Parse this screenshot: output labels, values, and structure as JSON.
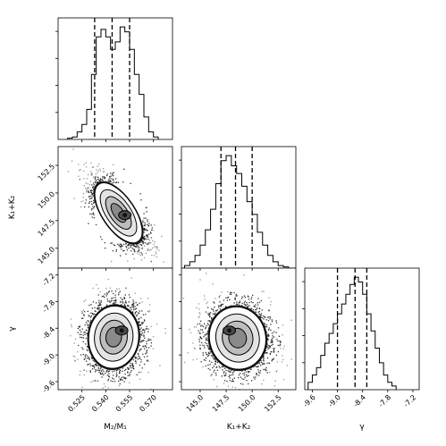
{
  "chart_data": {
    "type": "corner",
    "parameters": [
      {
        "key": "q",
        "label": "M₂/M₁",
        "axis_range": [
          0.51,
          0.582
        ],
        "quantiles": [
          0.533,
          0.544,
          0.555
        ]
      },
      {
        "key": "k",
        "label": "K₁+K₂",
        "axis_range": [
          143.2,
          154.2
        ],
        "quantiles": [
          147.0,
          148.4,
          150.0
        ]
      },
      {
        "key": "g",
        "label": "γ",
        "axis_range": [
          -9.78,
          -7.05
        ],
        "quantiles": [
          -9.0,
          -8.58,
          -8.3
        ]
      }
    ],
    "ticks": {
      "q": [
        "0.525",
        "0.540",
        "0.555",
        "0.570"
      ],
      "k": [
        "145.0",
        "147.5",
        "150.0",
        "152.5"
      ],
      "g": [
        "-9.6",
        "-9.0",
        "-8.4",
        "-7.8",
        "-7.2"
      ]
    },
    "tick_values": {
      "q": [
        0.525,
        0.54,
        0.555,
        0.57
      ],
      "k": [
        145.0,
        147.5,
        150.0,
        152.5
      ],
      "g": [
        -9.6,
        -9.0,
        -8.4,
        -7.8,
        -7.2
      ]
    },
    "diagonal_ylabel": {
      "k": "K₁+K₂",
      "g": "γ"
    },
    "histograms": {
      "q": {
        "edges": [
          0.516,
          0.519,
          0.522,
          0.525,
          0.528,
          0.531,
          0.534,
          0.537,
          0.54,
          0.543,
          0.546,
          0.549,
          0.552,
          0.555,
          0.558,
          0.561,
          0.564,
          0.567,
          0.57,
          0.573
        ],
        "counts": [
          1,
          2,
          6,
          12,
          24,
          52,
          82,
          88,
          82,
          72,
          78,
          90,
          86,
          72,
          52,
          36,
          18,
          6,
          2
        ]
      },
      "k": {
        "edges": [
          143.5,
          144.0,
          144.5,
          145.0,
          145.5,
          146.0,
          146.5,
          147.0,
          147.5,
          148.0,
          148.5,
          149.0,
          149.5,
          150.0,
          150.5,
          151.0,
          151.5,
          152.0,
          152.5,
          153.0,
          153.5
        ],
        "counts": [
          2,
          5,
          10,
          18,
          30,
          46,
          66,
          84,
          88,
          80,
          74,
          64,
          52,
          42,
          28,
          18,
          10,
          5,
          2,
          1
        ]
      },
      "g": {
        "edges": [
          -9.7,
          -9.6,
          -9.5,
          -9.4,
          -9.3,
          -9.2,
          -9.1,
          -9.0,
          -8.9,
          -8.8,
          -8.7,
          -8.6,
          -8.5,
          -8.4,
          -8.3,
          -8.2,
          -8.1,
          -8.0,
          -7.9,
          -7.8,
          -7.7,
          -7.6
        ],
        "counts": [
          6,
          12,
          18,
          28,
          38,
          46,
          54,
          62,
          70,
          78,
          86,
          92,
          88,
          78,
          62,
          48,
          34,
          22,
          12,
          6,
          3
        ]
      }
    },
    "scatter_2d": [
      {
        "x": "q",
        "y": "k",
        "center": [
          0.548,
          148.2
        ],
        "sd": [
          0.0085,
          1.55
        ],
        "rho": -0.62,
        "peak": [
          0.552,
          148.0
        ]
      },
      {
        "x": "q",
        "y": "g",
        "center": [
          0.545,
          -8.6
        ],
        "sd": [
          0.009,
          0.4
        ],
        "rho": 0.05,
        "peak": [
          0.55,
          -8.45
        ]
      },
      {
        "x": "k",
        "y": "g",
        "center": [
          148.6,
          -8.62
        ],
        "sd": [
          1.55,
          0.4
        ],
        "rho": -0.05,
        "peak": [
          147.8,
          -8.45
        ]
      }
    ],
    "contour_levels": [
      "0.5σ",
      "1σ",
      "1.5σ",
      "2σ"
    ],
    "colors": {
      "line": "#000000",
      "density_low": "#dcdcdc",
      "density_high": "#2a2a2a",
      "background": "#ffffff"
    }
  }
}
